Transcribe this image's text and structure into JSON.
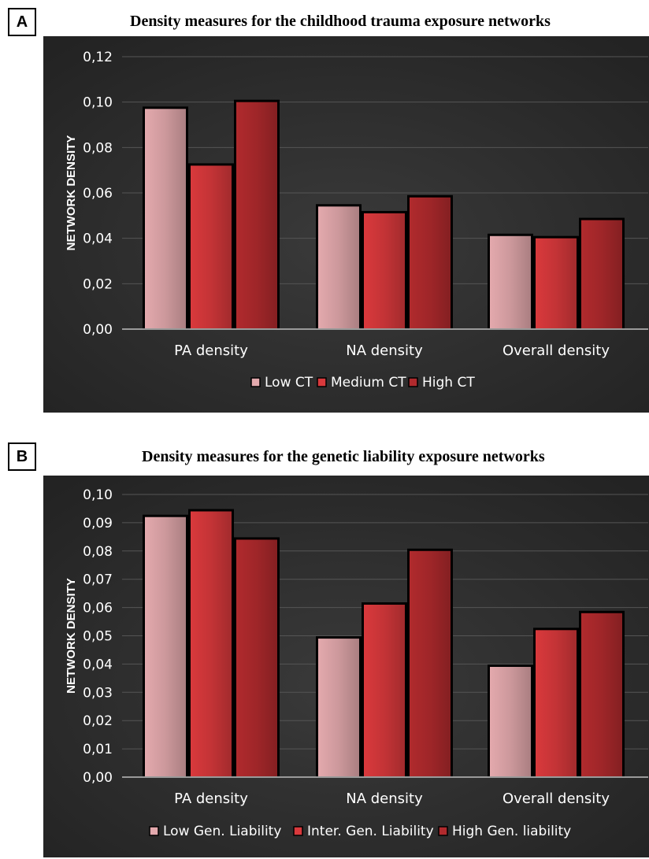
{
  "chart_data": [
    {
      "panel": "A",
      "type": "bar",
      "title": "Density measures for the childhood trauma exposure networks",
      "xlabel": "",
      "ylabel": "NETWORK DENSITY",
      "categories": [
        "PA density",
        "NA density",
        "Overall density"
      ],
      "series": [
        {
          "name": "Low CT",
          "values": [
            0.097,
            0.054,
            0.041
          ]
        },
        {
          "name": "Medium CT",
          "values": [
            0.072,
            0.051,
            0.04
          ]
        },
        {
          "name": "High CT",
          "values": [
            0.1,
            0.058,
            0.048
          ]
        }
      ],
      "ylim": [
        0,
        0.12
      ],
      "yticks": [
        "0,00",
        "0,02",
        "0,04",
        "0,06",
        "0,08",
        "0,10",
        "0,12"
      ],
      "grid": true,
      "legend": "bottom"
    },
    {
      "panel": "B",
      "type": "bar",
      "title": "Density measures for the genetic liability exposure networks",
      "xlabel": "",
      "ylabel": "NETWORK DENSITY",
      "categories": [
        "PA density",
        "NA density",
        "Overall density"
      ],
      "series": [
        {
          "name": "Low Gen. Liability",
          "values": [
            0.092,
            0.049,
            0.039
          ]
        },
        {
          "name": "Inter. Gen. Liability",
          "values": [
            0.094,
            0.061,
            0.052
          ]
        },
        {
          "name": "High Gen. liability",
          "values": [
            0.084,
            0.08,
            0.058
          ]
        }
      ],
      "ylim": [
        0,
        0.1
      ],
      "yticks": [
        "0,00",
        "0,01",
        "0,02",
        "0,03",
        "0,04",
        "0,05",
        "0,06",
        "0,07",
        "0,08",
        "0,09",
        "0,10"
      ],
      "grid": true,
      "legend": "bottom"
    }
  ],
  "colors": {
    "background": "#2c2c2c",
    "series": [
      "#e3a9ad",
      "#d9393c",
      "#b02a2d"
    ],
    "grid": "#555555",
    "text": "#ffffff"
  }
}
